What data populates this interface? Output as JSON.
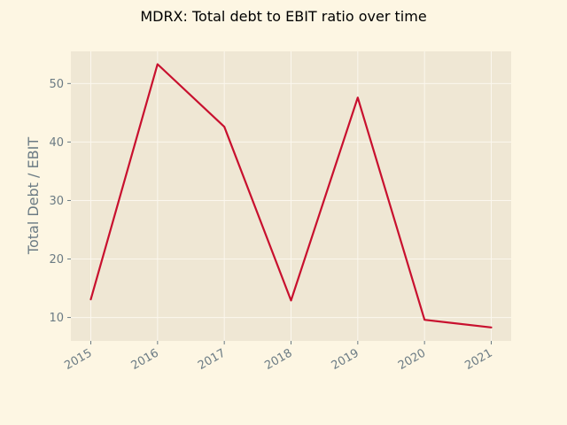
{
  "chart_data": {
    "type": "line",
    "title": "MDRX: Total debt to EBIT ratio over time",
    "xlabel": "",
    "ylabel": "Total Debt / EBIT",
    "categories": [
      "2015",
      "2016",
      "2017",
      "2018",
      "2019",
      "2020",
      "2021"
    ],
    "series": [
      {
        "values": [
          13.1,
          53.3,
          42.6,
          12.9,
          47.6,
          9.6,
          8.3
        ]
      }
    ],
    "ylim": [
      6.0,
      55.5
    ],
    "yticks": [
      10,
      20,
      30,
      40,
      50
    ],
    "grid": true,
    "colors": {
      "line": "#c8102e",
      "plot_background": "#efe7d4",
      "grid": "#fbf7ee",
      "tick_text": "#6b7b84"
    }
  }
}
